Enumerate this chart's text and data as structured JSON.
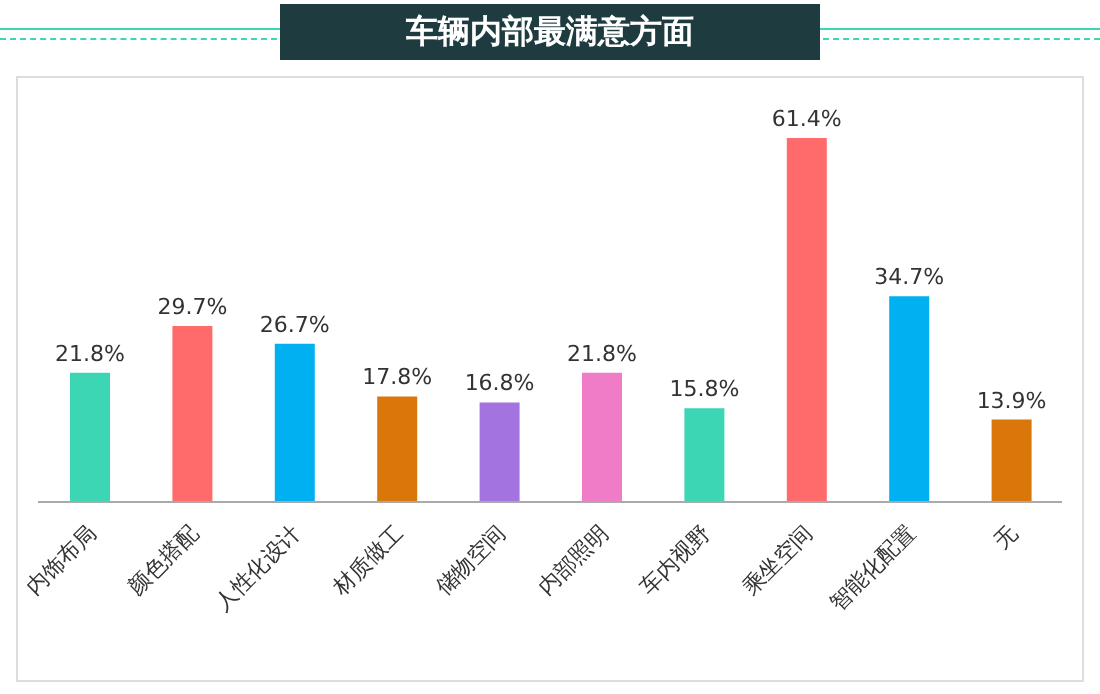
{
  "chart_data": {
    "type": "bar",
    "title": "车辆内部最满意方面",
    "categories": [
      "内饰布局",
      "颜色搭配",
      "人性化设计",
      "材质做工",
      "储物空间",
      "内部照明",
      "车内视野",
      "乘坐空间",
      "智能化配置",
      "无"
    ],
    "values": [
      21.8,
      29.7,
      26.7,
      17.8,
      16.8,
      21.8,
      15.8,
      61.4,
      34.7,
      13.9
    ],
    "colors": [
      "#3dd6b5",
      "#ff6b6b",
      "#00b0f0",
      "#d9770b",
      "#a374e0",
      "#f07cc8",
      "#3dd6b5",
      "#ff6b6b",
      "#00b0f0",
      "#d9770b"
    ],
    "value_labels": [
      "21.8%",
      "29.7%",
      "26.7%",
      "17.8%",
      "16.8%",
      "21.8%",
      "15.8%",
      "61.4%",
      "34.7%",
      "13.9%"
    ],
    "grid": false,
    "legend": false
  }
}
